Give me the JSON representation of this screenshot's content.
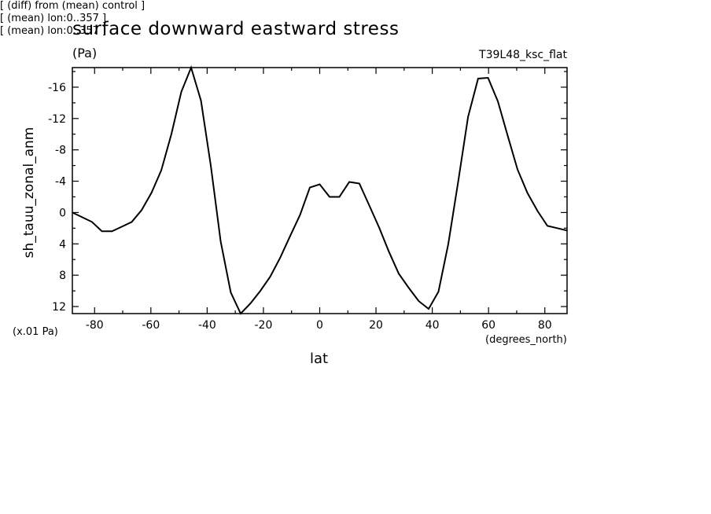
{
  "chart_data": {
    "type": "line",
    "title": "surface downward eastward stress",
    "units": "(Pa)",
    "run_label": "T39L48_ksc_flat",
    "ylabel": "sh_tauu_zonal_anm",
    "y_scale_note": "(x.01 Pa)",
    "xlabel": "lat",
    "x_units": "(degrees_north)",
    "xlim": [
      -87.9,
      87.9
    ],
    "ylim": [
      12.9,
      -18.5
    ],
    "y_inverted": true,
    "grid": false,
    "x_ticks": [
      -80,
      -60,
      -40,
      -20,
      0,
      20,
      40,
      60,
      80
    ],
    "x_tick_labels": [
      "-80",
      "-60",
      "-40",
      "-20",
      "0",
      "20",
      "40",
      "60",
      "80"
    ],
    "y_ticks": [
      -16,
      -12,
      -8,
      -4,
      0,
      4,
      8,
      12
    ],
    "y_tick_labels": [
      "-16",
      "-12",
      "-8",
      "-4",
      "0",
      "4",
      "8",
      "12"
    ],
    "series": [
      {
        "x": [
          -87.9,
          -84.4,
          -80.9,
          -77.4,
          -73.8,
          -70.3,
          -66.8,
          -63.3,
          -59.8,
          -56.3,
          -52.7,
          -49.2,
          -45.7,
          -42.2,
          -38.7,
          -35.2,
          -31.6,
          -28.1,
          -24.6,
          -21.1,
          -17.6,
          -14.1,
          -10.5,
          -7.0,
          -3.5,
          0.0,
          3.5,
          7.0,
          10.5,
          14.1,
          17.6,
          21.1,
          24.6,
          28.1,
          31.6,
          35.2,
          38.7,
          42.2,
          45.7,
          49.2,
          52.7,
          56.3,
          59.8,
          63.3,
          66.8,
          70.3,
          73.8,
          77.4,
          80.9,
          84.4,
          87.9
        ],
        "y": [
          0.0,
          0.6,
          1.2,
          2.4,
          2.4,
          1.8,
          1.2,
          -0.3,
          -2.5,
          -5.4,
          -10.0,
          -15.4,
          -18.5,
          -14.3,
          -6.0,
          3.7,
          10.2,
          12.9,
          11.6,
          10.0,
          8.2,
          5.8,
          3.0,
          0.3,
          -3.2,
          -3.6,
          -2.0,
          -2.0,
          -3.9,
          -3.7,
          -0.9,
          1.9,
          5.0,
          7.8,
          9.6,
          11.3,
          12.3,
          10.1,
          4.0,
          -3.9,
          -12.2,
          -17.1,
          -17.2,
          -14.2,
          -9.8,
          -5.5,
          -2.5,
          -0.2,
          1.7,
          2.0,
          2.3
        ]
      }
    ]
  },
  "notes": [
    "[ (diff) from (mean) control ]",
    "[ (mean) lon:0..357 ]",
    "[ (mean) lon:0..357 ]"
  ]
}
